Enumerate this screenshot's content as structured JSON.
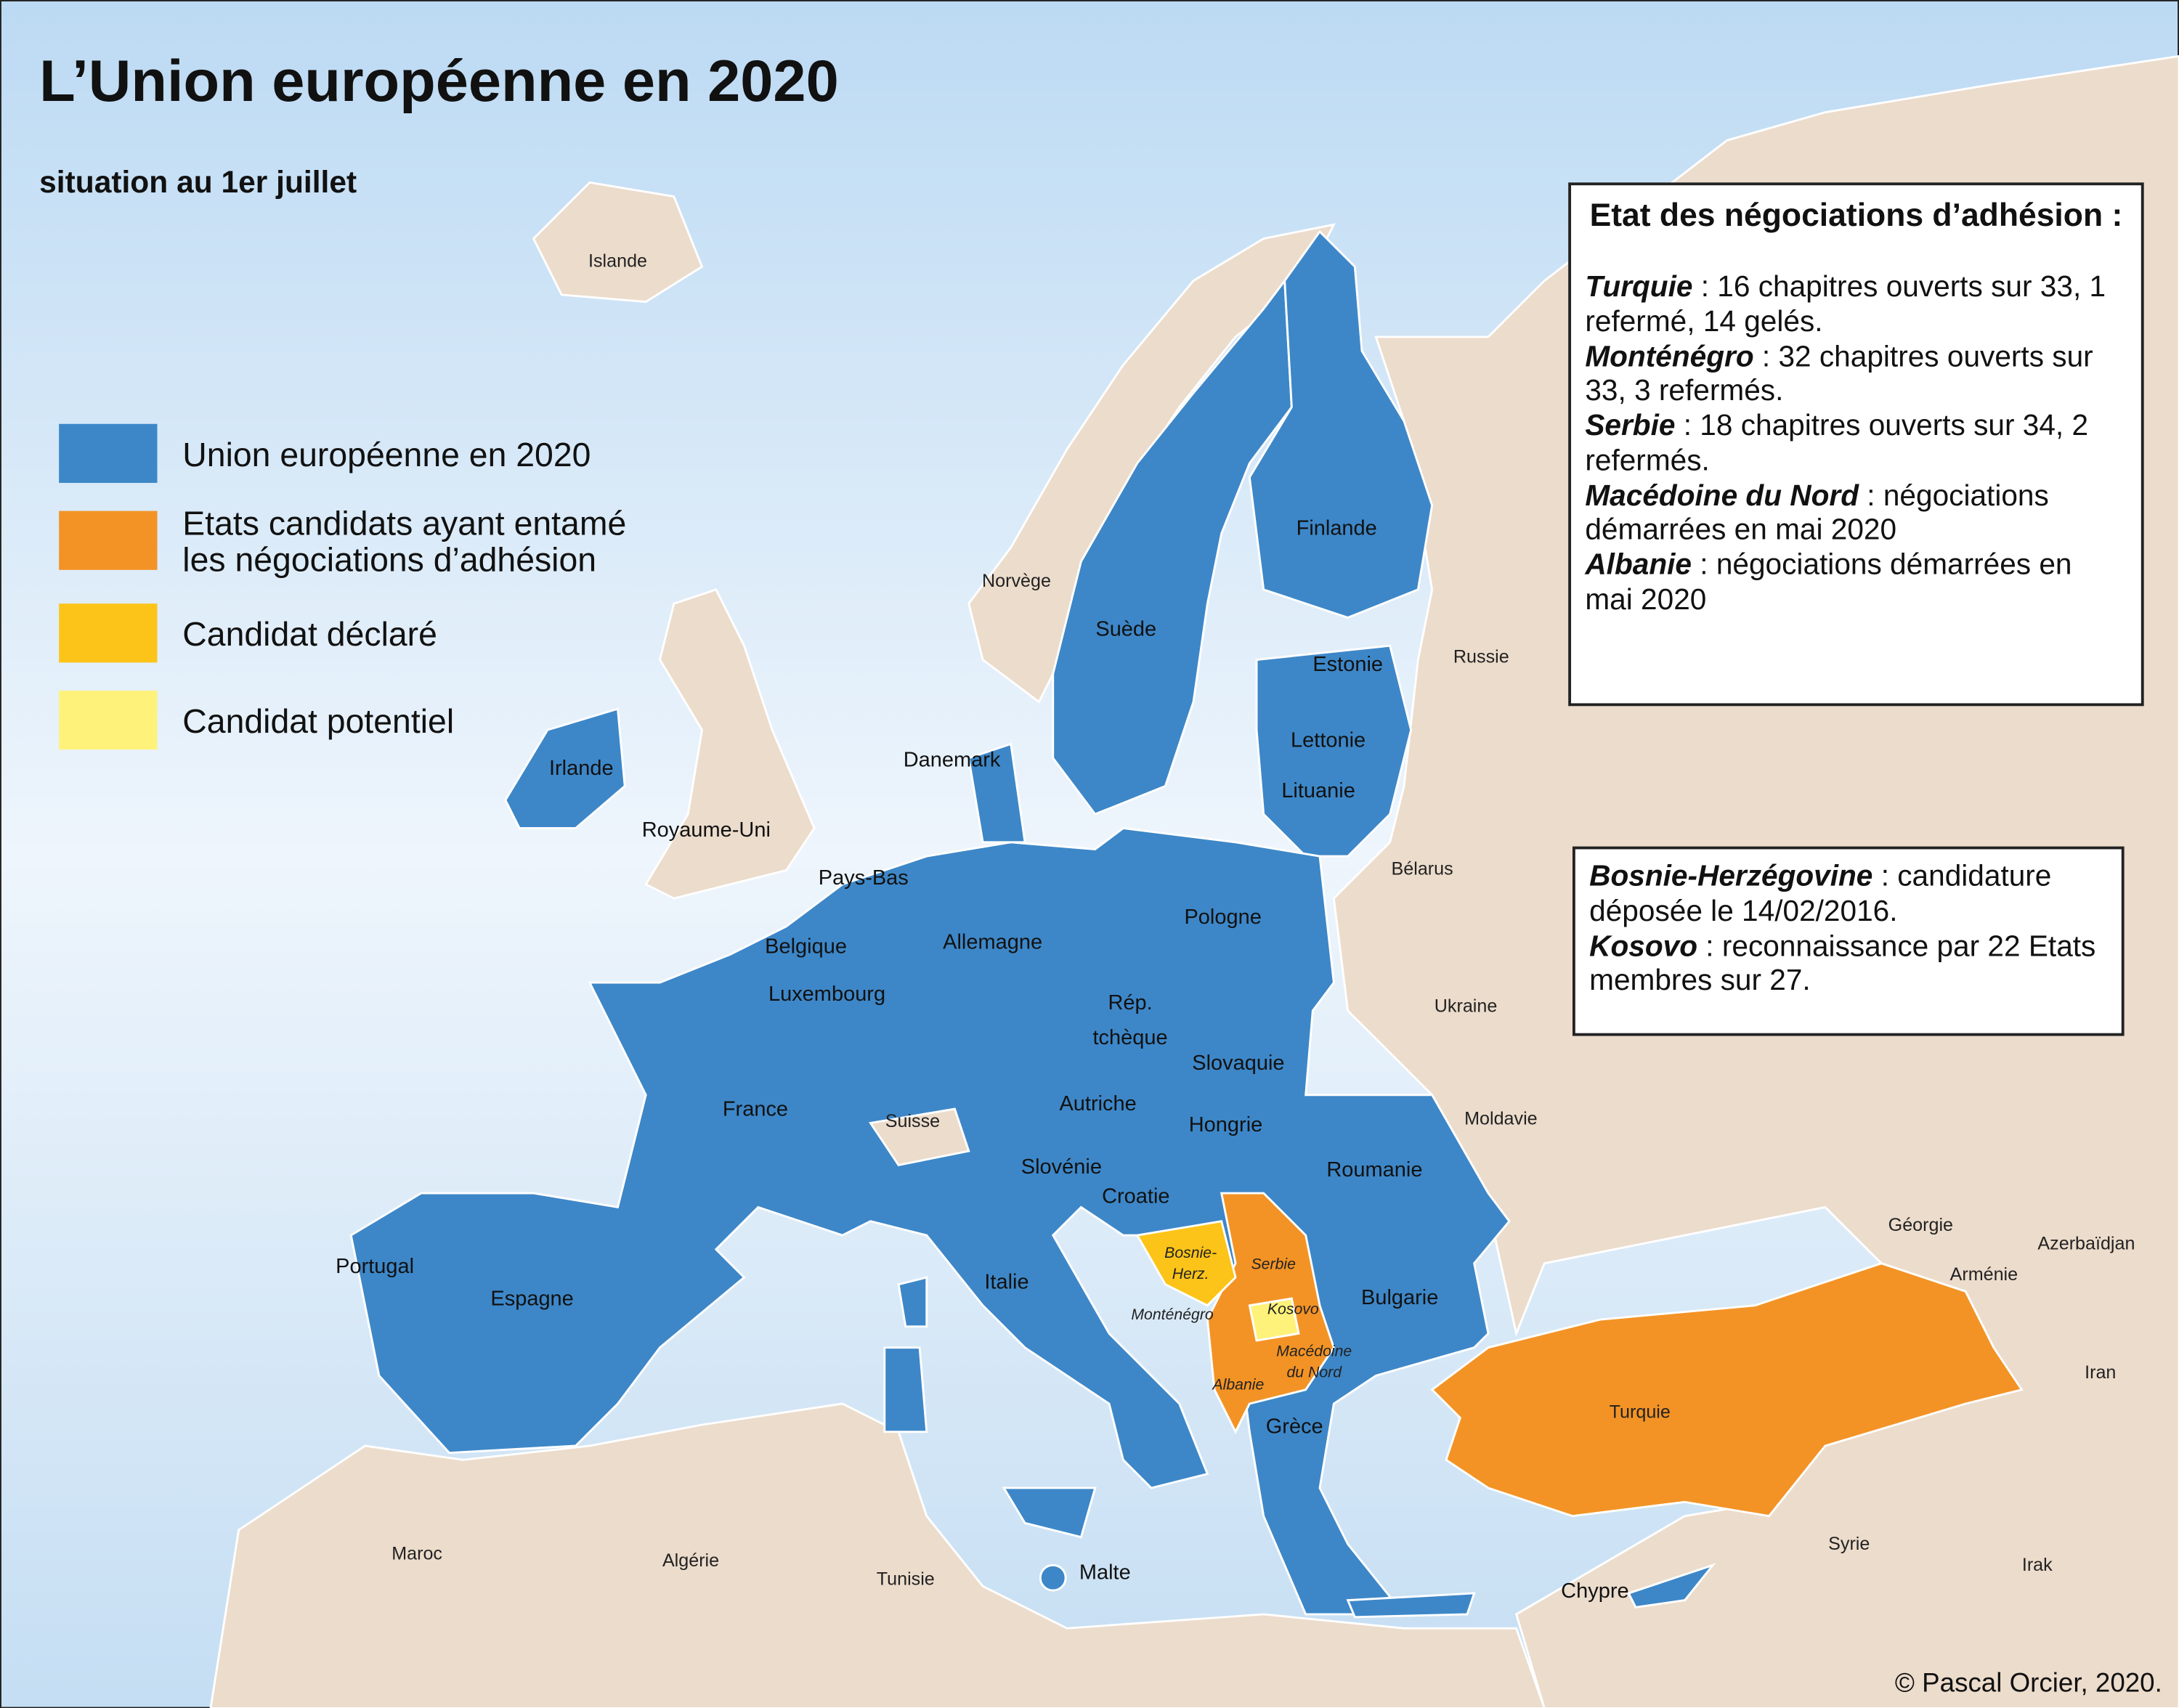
{
  "header": {
    "title": "L’Union européenne en 2020",
    "subtitle": "situation au 1er juillet"
  },
  "legend": [
    {
      "label": [
        "Union européenne en 2020"
      ],
      "color": "#3d87c8"
    },
    {
      "label": [
        "Etats candidats ayant entamé",
        "les négociations d’adhésion"
      ],
      "color": "#f39325"
    },
    {
      "label": [
        "Candidat déclaré"
      ],
      "color": "#fcc419"
    },
    {
      "label": [
        "Candidat potentiel"
      ],
      "color": "#fff27a"
    }
  ],
  "negotiations": {
    "title": "Etat des négociations d’adhésion :",
    "items": [
      {
        "country": "Turquie",
        "text": " : 16 chapitres ouverts sur 33, 1 refermé, 14 gelés."
      },
      {
        "country": "Monténégro",
        "text": " : 32 chapitres ouverts sur 33, 3 refermés."
      },
      {
        "country": "Serbie",
        "text": " : 18 chapitres ouverts sur 34, 2 refermés."
      },
      {
        "country": "Macédoine du Nord",
        "text": " : négociations démarrées en mai 2020"
      },
      {
        "country": "Albanie",
        "text": " : négociations démarrées en mai 2020"
      }
    ]
  },
  "candidacies": {
    "items": [
      {
        "country": "Bosnie-Herzégovine",
        "text": " : candidature déposée le 14/02/2016."
      },
      {
        "country": "Kosovo",
        "text": " : reconnaissance par 22 Etats membres sur 27."
      }
    ]
  },
  "labels": [
    [
      "Islande"
    ],
    [
      "Norvège"
    ],
    [
      "Suède"
    ],
    [
      "Finlande"
    ],
    [
      "Estonie"
    ],
    [
      "Lettonie"
    ],
    [
      "Lituanie"
    ],
    [
      "Russie"
    ],
    [
      "Danemark"
    ],
    [
      "Irlande"
    ],
    [
      "Royaume-Uni"
    ],
    [
      "Pays-Bas"
    ],
    [
      "Belgique"
    ],
    [
      "Luxembourg"
    ],
    [
      "Allemagne"
    ],
    [
      "Pologne"
    ],
    [
      "Bélarus"
    ],
    [
      "Ukraine"
    ],
    [
      "Rép.",
      "tchèque"
    ],
    [
      "Slovaquie"
    ],
    [
      "Autriche"
    ],
    [
      "Hongrie"
    ],
    [
      "Suisse"
    ],
    [
      "France"
    ],
    [
      "Slovénie"
    ],
    [
      "Croatie"
    ],
    [
      "Roumanie"
    ],
    [
      "Moldavie"
    ],
    [
      "Bosnie-",
      "Herz."
    ],
    [
      "Serbie"
    ],
    [
      "Kosovo"
    ],
    [
      "Monténégro"
    ],
    [
      "Macédoine",
      "du Nord"
    ],
    [
      "Albanie"
    ],
    [
      "Bulgarie"
    ],
    [
      "Grèce"
    ],
    [
      "Italie"
    ],
    [
      "Portugal"
    ],
    [
      "Espagne"
    ],
    [
      "Turquie"
    ],
    [
      "Géorgie"
    ],
    [
      "Arménie"
    ],
    [
      "Azerbaïdjan"
    ],
    [
      "Iran"
    ],
    [
      "Syrie"
    ],
    [
      "Irak"
    ],
    [
      "Chypre"
    ],
    [
      "Malte"
    ],
    [
      "Maroc"
    ],
    [
      "Algérie"
    ],
    [
      "Tunisie"
    ]
  ],
  "credit": "© Pascal Orcier, 2020."
}
